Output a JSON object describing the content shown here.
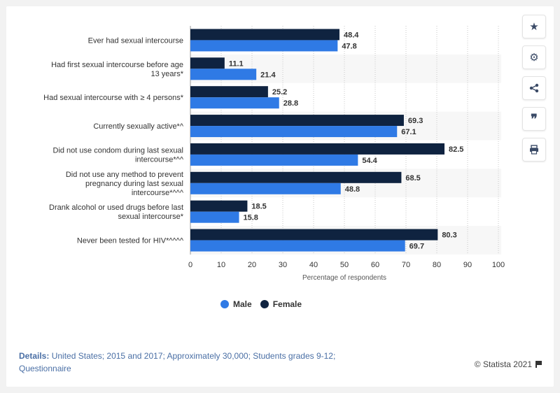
{
  "chart_data": {
    "type": "bar",
    "orientation": "horizontal",
    "categories": [
      "Ever had sexual intercourse",
      "Had first sexual intercourse before age 13 years*",
      "Had sexual intercourse with ≥ 4 persons*",
      "Currently sexually active*^",
      "Did not use condom during last sexual intercourse*^^",
      "Did not use any method to prevent pregnancy during last sexual intercourse*^^^",
      "Drank alcohol or used drugs before last sexual intercourse*",
      "Never been tested for HIV*^^^^"
    ],
    "category_lines": [
      [
        "Ever had sexual intercourse"
      ],
      [
        "Had first sexual intercourse before age",
        "13 years*"
      ],
      [
        "Had sexual intercourse with ≥ 4 persons*"
      ],
      [
        "Currently sexually active*^"
      ],
      [
        "Did not use condom during last sexual",
        "intercourse*^^"
      ],
      [
        "Did not use any method to prevent",
        "pregnancy during last sexual",
        "intercourse*^^^"
      ],
      [
        "Drank alcohol or used drugs before last",
        "sexual intercourse*"
      ],
      [
        "Never been tested for HIV*^^^^"
      ]
    ],
    "series": [
      {
        "name": "Female",
        "color": "#0f2340",
        "values": [
          48.4,
          11.1,
          25.2,
          69.3,
          82.5,
          68.5,
          18.5,
          80.3
        ]
      },
      {
        "name": "Male",
        "color": "#2f7ae5",
        "values": [
          47.8,
          21.4,
          28.8,
          67.1,
          54.4,
          48.8,
          15.8,
          69.7
        ]
      }
    ],
    "xlabel": "Percentage of respondents",
    "xlim": [
      0,
      100
    ],
    "xticks": [
      0,
      10,
      20,
      30,
      40,
      50,
      60,
      70,
      80,
      90,
      100
    ],
    "grid": true,
    "legend_position": "bottom"
  },
  "legend": [
    {
      "label": "Male",
      "color": "#2f7ae5"
    },
    {
      "label": "Female",
      "color": "#0f2340"
    }
  ],
  "sidebar": [
    "star-icon",
    "gear-icon",
    "share-icon",
    "quote-icon",
    "print-icon"
  ],
  "details": {
    "label": "Details:",
    "text": "United States; 2015 and 2017; Approximately 30,000; Students grades 9-12; Questionnaire"
  },
  "credit": "© Statista 2021"
}
